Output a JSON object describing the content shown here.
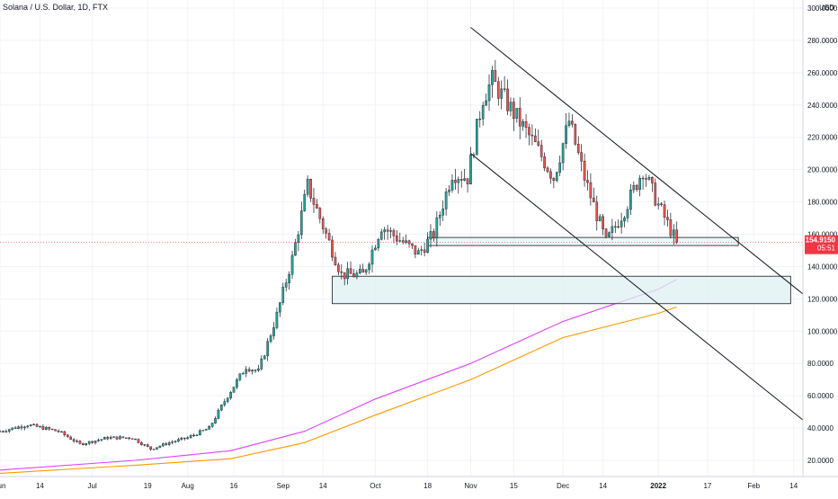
{
  "header": {
    "title": "Solana / U.S. Dollar, 1D, FTX"
  },
  "price_axis": {
    "currency_label": "USD",
    "ticks": [
      "300.0000",
      "280.0000",
      "260.0000",
      "240.0000",
      "220.0000",
      "200.0000",
      "180.0000",
      "160.0000",
      "140.0000",
      "120.0000",
      "100.0000",
      "80.0000",
      "60.0000",
      "40.0000",
      "20.0000"
    ]
  },
  "current_price": {
    "value": "154.9150",
    "countdown": "05:51",
    "color": "#f23645"
  },
  "time_axis": {
    "labels": [
      "Jun",
      "14",
      "Jul",
      "19",
      "Aug",
      "16",
      "Sep",
      "14",
      "Oct",
      "18",
      "Nov",
      "15",
      "Dec",
      "14",
      "2022",
      "17",
      "Feb",
      "14"
    ]
  },
  "colors": {
    "up": "#26a69a",
    "down": "#ef5350",
    "ma_fast": "#e040fb",
    "ma_slow": "#ff9800",
    "zone_fill": "#dff0f2",
    "trendline": "#131722"
  },
  "chart_data": {
    "type": "candlestick",
    "x_unit": "date",
    "y_unit": "USD",
    "ylim": [
      10,
      305
    ],
    "xlim": [
      "2021-06-01",
      "2022-02-17"
    ],
    "price_ticks": [
      20,
      40,
      60,
      80,
      100,
      120,
      140,
      160,
      180,
      200,
      220,
      240,
      260,
      280,
      300
    ],
    "series": [
      {
        "name": "",
        "kind": "close_path",
        "points": [
          [
            "2021-06-01",
            38
          ],
          [
            "2021-06-10",
            42
          ],
          [
            "2021-06-20",
            38
          ],
          [
            "2021-06-27",
            30
          ],
          [
            "2021-07-06",
            34
          ],
          [
            "2021-07-14",
            34
          ],
          [
            "2021-07-20",
            27
          ],
          [
            "2021-07-26",
            31
          ],
          [
            "2021-08-01",
            34
          ],
          [
            "2021-08-08",
            40
          ],
          [
            "2021-08-14",
            60
          ],
          [
            "2021-08-20",
            78
          ],
          [
            "2021-08-24",
            75
          ],
          [
            "2021-08-30",
            110
          ],
          [
            "2021-09-04",
            145
          ],
          [
            "2021-09-09",
            190
          ],
          [
            "2021-09-14",
            165
          ],
          [
            "2021-09-20",
            135
          ],
          [
            "2021-09-27",
            135
          ],
          [
            "2021-10-03",
            165
          ],
          [
            "2021-10-10",
            155
          ],
          [
            "2021-10-15",
            148
          ],
          [
            "2021-10-20",
            160
          ],
          [
            "2021-10-26",
            198
          ],
          [
            "2021-10-31",
            195
          ],
          [
            "2021-11-05",
            245
          ],
          [
            "2021-11-08",
            255
          ],
          [
            "2021-11-15",
            235
          ],
          [
            "2021-11-22",
            215
          ],
          [
            "2021-11-28",
            195
          ],
          [
            "2021-12-03",
            230
          ],
          [
            "2021-12-08",
            195
          ],
          [
            "2021-12-15",
            155
          ],
          [
            "2021-12-21",
            175
          ],
          [
            "2021-12-27",
            200
          ],
          [
            "2022-01-01",
            178
          ],
          [
            "2022-01-07",
            155
          ]
        ]
      },
      {
        "name": "",
        "kind": "moving_average_fast",
        "points": [
          [
            "2021-06-01",
            14
          ],
          [
            "2021-07-15",
            20
          ],
          [
            "2021-08-15",
            26
          ],
          [
            "2021-09-08",
            38
          ],
          [
            "2021-10-01",
            58
          ],
          [
            "2021-11-01",
            80
          ],
          [
            "2021-12-01",
            106
          ],
          [
            "2022-01-01",
            126
          ],
          [
            "2022-01-07",
            132
          ]
        ]
      },
      {
        "name": "",
        "kind": "moving_average_slow",
        "points": [
          [
            "2021-06-01",
            12
          ],
          [
            "2021-07-15",
            17
          ],
          [
            "2021-08-15",
            21
          ],
          [
            "2021-09-08",
            31
          ],
          [
            "2021-10-01",
            48
          ],
          [
            "2021-11-01",
            70
          ],
          [
            "2021-12-01",
            96
          ],
          [
            "2022-01-01",
            111
          ],
          [
            "2022-01-07",
            115
          ]
        ]
      }
    ],
    "annotations": [
      {
        "kind": "trendline",
        "from": [
          "2021-11-01",
          288
        ],
        "to": [
          "2022-02-17",
          123
        ]
      },
      {
        "kind": "trendline",
        "from": [
          "2021-11-01",
          210
        ],
        "to": [
          "2022-02-17",
          45
        ]
      },
      {
        "kind": "zone",
        "from": [
          "2021-10-18",
          158
        ],
        "to": [
          "2022-01-27",
          153
        ]
      },
      {
        "kind": "zone",
        "from": [
          "2021-09-17",
          134
        ],
        "to": [
          "2022-02-13",
          117
        ]
      }
    ]
  }
}
